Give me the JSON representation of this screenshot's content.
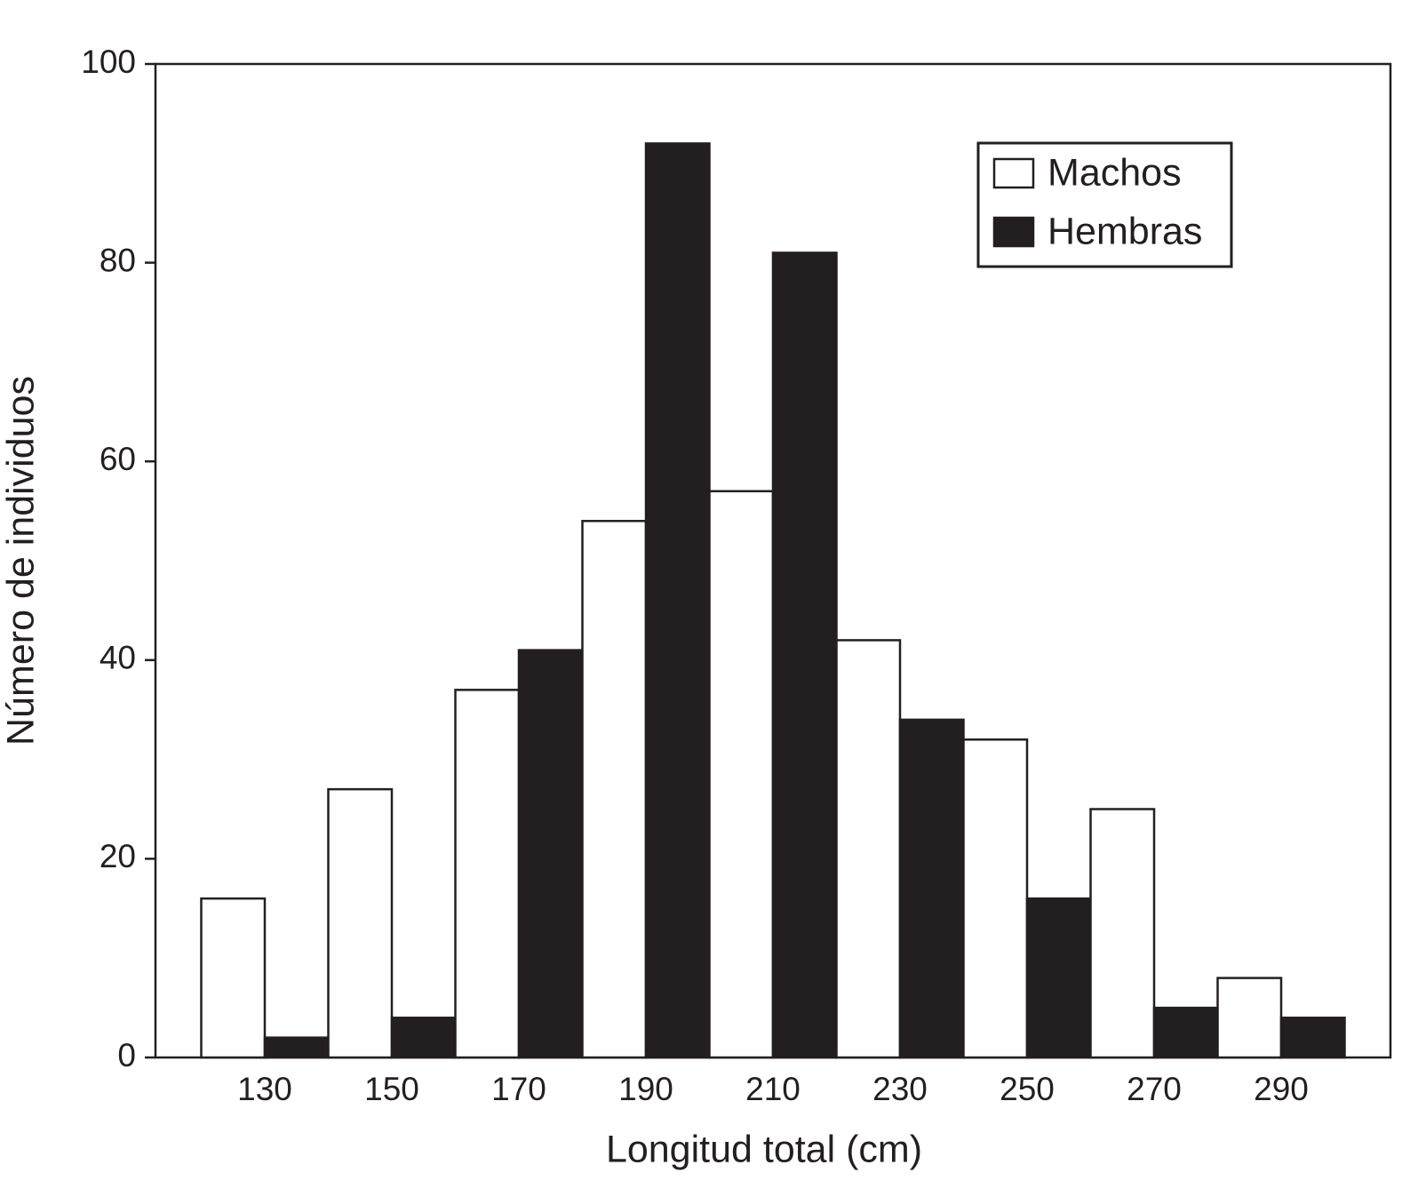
{
  "chart_data": {
    "type": "bar",
    "xlabel": "Longitud total (cm)",
    "ylabel": "Número de individuos",
    "categories": [
      "130",
      "150",
      "170",
      "190",
      "210",
      "230",
      "250",
      "270",
      "290"
    ],
    "series": [
      {
        "name": "Machos",
        "color": "#ffffff",
        "values": [
          16,
          27,
          37,
          54,
          57,
          42,
          32,
          25,
          8
        ]
      },
      {
        "name": "Hembras",
        "color": "#231f20",
        "values": [
          2,
          4,
          41,
          92,
          81,
          34,
          16,
          5,
          4
        ]
      }
    ],
    "ylim": [
      0,
      100
    ],
    "yticks": [
      0,
      20,
      40,
      60,
      80,
      100
    ],
    "grid": false,
    "legend": "upper right"
  }
}
